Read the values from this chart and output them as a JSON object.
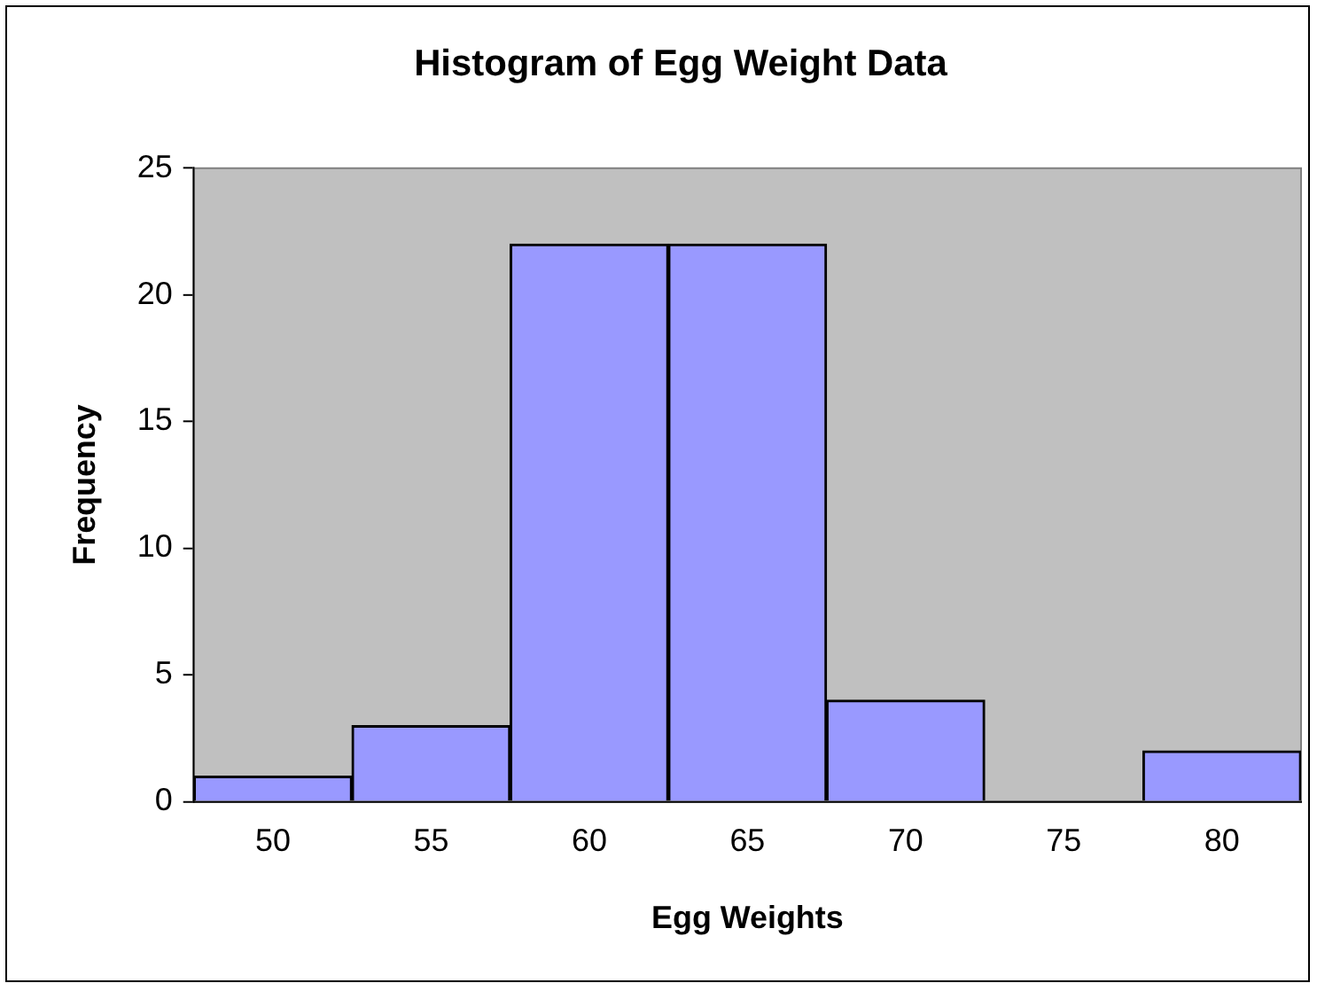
{
  "chart_data": {
    "type": "bar",
    "title": "Histogram of Egg Weight Data",
    "xlabel": "Egg Weights",
    "ylabel": "Frequency",
    "categories": [
      "50",
      "55",
      "60",
      "65",
      "70",
      "75",
      "80"
    ],
    "values": [
      1,
      3,
      22,
      22,
      4,
      0,
      2
    ],
    "color": "#9999ff",
    "ylim": [
      0,
      25
    ],
    "yticks": [
      0,
      5,
      10,
      15,
      20,
      25
    ],
    "grid": false,
    "legend": false
  }
}
